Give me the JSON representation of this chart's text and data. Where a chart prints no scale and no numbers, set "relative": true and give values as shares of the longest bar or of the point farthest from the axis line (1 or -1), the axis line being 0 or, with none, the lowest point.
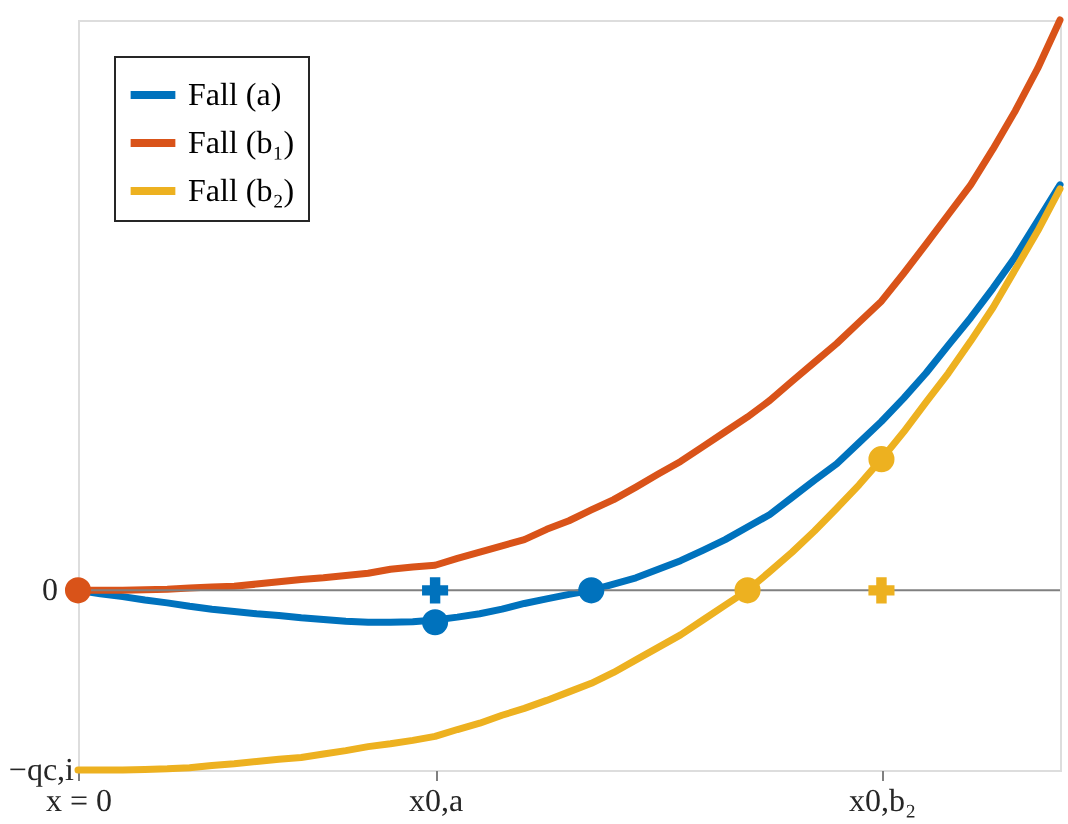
{
  "chart_data": {
    "type": "line",
    "relative": true,
    "categories": [
      "x = 0",
      null,
      null,
      null,
      null,
      null,
      null,
      null,
      null,
      null,
      null,
      null,
      null,
      null,
      null,
      null,
      "x0,a",
      null,
      null,
      null,
      null,
      null,
      null,
      null,
      null,
      null,
      null,
      null,
      null,
      null,
      null,
      null,
      null,
      null,
      null,
      null,
      "x0,b₂",
      null,
      null,
      null,
      null,
      null,
      null,
      null,
      null
    ],
    "series": [
      {
        "name": "Fall (a)",
        "color": "#0072bd",
        "values": [
          0,
          -0.006,
          -0.011,
          -0.017,
          -0.022,
          -0.028,
          -0.033,
          -0.037,
          -0.041,
          -0.044,
          -0.048,
          -0.051,
          -0.054,
          -0.056,
          -0.056,
          -0.055,
          -0.052,
          -0.047,
          -0.041,
          -0.033,
          -0.023,
          -0.015,
          -0.007,
          0,
          0.011,
          0.022,
          0.037,
          0.052,
          0.07,
          0.089,
          0.111,
          0.133,
          0.163,
          0.193,
          0.222,
          0.259,
          0.296,
          0.337,
          0.381,
          0.43,
          0.478,
          0.53,
          0.585,
          0.648,
          0.711
        ]
      },
      {
        "name": "Fall (b₁)",
        "color": "#d95319",
        "values": [
          0,
          0,
          0,
          0.001,
          0.002,
          0.004,
          0.006,
          0.007,
          0.011,
          0.015,
          0.019,
          0.022,
          0.026,
          0.03,
          0.037,
          0.041,
          0.044,
          0.056,
          0.067,
          0.078,
          0.089,
          0.107,
          0.122,
          0.141,
          0.159,
          0.181,
          0.204,
          0.226,
          0.252,
          0.278,
          0.304,
          0.333,
          0.367,
          0.4,
          0.433,
          0.47,
          0.507,
          0.556,
          0.607,
          0.659,
          0.711,
          0.774,
          0.841,
          0.915,
          1
        ]
      },
      {
        "name": "Fall (b₂)",
        "color": "#edb120",
        "values": [
          -0.315,
          -0.315,
          -0.315,
          -0.314,
          -0.313,
          -0.311,
          -0.307,
          -0.304,
          -0.3,
          -0.296,
          -0.293,
          -0.287,
          -0.281,
          -0.274,
          -0.269,
          -0.263,
          -0.256,
          -0.244,
          -0.233,
          -0.219,
          -0.207,
          -0.193,
          -0.178,
          -0.163,
          -0.144,
          -0.122,
          -0.1,
          -0.078,
          -0.052,
          -0.026,
          0,
          0.033,
          0.067,
          0.104,
          0.144,
          0.185,
          0.23,
          0.278,
          0.33,
          0.381,
          0.437,
          0.496,
          0.563,
          0.63,
          0.704
        ]
      },
      {
        "type": "scatter",
        "marker": "circle",
        "color": "#0072bd",
        "values": [
          null,
          null,
          null,
          null,
          null,
          null,
          null,
          null,
          null,
          null,
          null,
          null,
          null,
          null,
          null,
          null,
          -0.056,
          null,
          null,
          null,
          null,
          null,
          null,
          0,
          null,
          null,
          null,
          null,
          null,
          null,
          null,
          null,
          null,
          null,
          null,
          null,
          null,
          null,
          null,
          null,
          null,
          null,
          null,
          null,
          null
        ]
      },
      {
        "type": "scatter",
        "marker": "cross",
        "color": "#0072bd",
        "values": [
          null,
          null,
          null,
          null,
          null,
          null,
          null,
          null,
          null,
          null,
          null,
          null,
          null,
          null,
          null,
          null,
          0,
          null,
          null,
          null,
          null,
          null,
          null,
          null,
          null,
          null,
          null,
          null,
          null,
          null,
          null,
          null,
          null,
          null,
          null,
          null,
          null,
          null,
          null,
          null,
          null,
          null,
          null,
          null,
          null
        ]
      },
      {
        "type": "scatter",
        "marker": "circle",
        "color": "#d95319",
        "values": [
          0,
          null,
          null,
          null,
          null,
          null,
          null,
          null,
          null,
          null,
          null,
          null,
          null,
          null,
          null,
          null,
          null,
          null,
          null,
          null,
          null,
          null,
          null,
          null,
          null,
          null,
          null,
          null,
          null,
          null,
          null,
          null,
          null,
          null,
          null,
          null,
          null,
          null,
          null,
          null,
          null,
          null,
          null,
          null,
          null
        ]
      },
      {
        "type": "scatter",
        "marker": "circle",
        "color": "#edb120",
        "values": [
          null,
          null,
          null,
          null,
          null,
          null,
          null,
          null,
          null,
          null,
          null,
          null,
          null,
          null,
          null,
          null,
          null,
          null,
          null,
          null,
          null,
          null,
          null,
          null,
          null,
          null,
          null,
          null,
          null,
          null,
          0,
          null,
          null,
          null,
          null,
          null,
          0.23,
          null,
          null,
          null,
          null,
          null,
          null,
          null,
          null
        ]
      },
      {
        "type": "scatter",
        "marker": "cross",
        "color": "#edb120",
        "values": [
          null,
          null,
          null,
          null,
          null,
          null,
          null,
          null,
          null,
          null,
          null,
          null,
          null,
          null,
          null,
          null,
          null,
          null,
          null,
          null,
          null,
          null,
          null,
          null,
          null,
          null,
          null,
          null,
          null,
          null,
          null,
          null,
          null,
          null,
          null,
          null,
          0,
          null,
          null,
          null,
          null,
          null,
          null,
          null,
          null
        ]
      }
    ],
    "ref_lines": [
      {
        "axis": "y",
        "value": 0,
        "label": "0",
        "color": "#808080"
      }
    ],
    "annotations": [
      "−qc,i"
    ],
    "legend": "top left",
    "grid": false,
    "line_style": "solid"
  }
}
